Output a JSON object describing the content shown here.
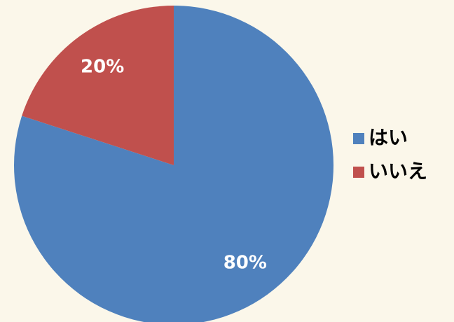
{
  "chart_data": {
    "type": "pie",
    "categories": [
      "はい",
      "いいえ"
    ],
    "values": [
      80,
      20
    ],
    "value_labels": [
      "80%",
      "20%"
    ],
    "colors": [
      "#4f81bd",
      "#c0504d"
    ],
    "legend": "right"
  }
}
